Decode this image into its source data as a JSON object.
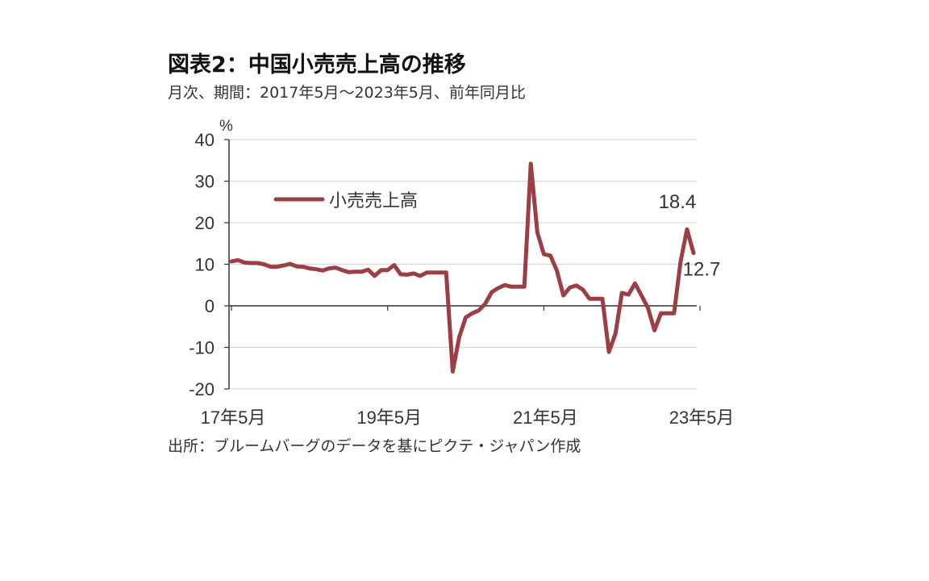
{
  "header": {
    "title": "図表2：中国小売売上高の推移",
    "subtitle": "月次、期間：2017年5月～2023年5月、前年同月比"
  },
  "footer": {
    "source": "出所：ブルームバーグのデータを基にピクテ・ジャパン作成"
  },
  "colors": {
    "series": "#9b3f44",
    "grid": "#d9d9d9",
    "axis": "#333333"
  },
  "chart_data": {
    "type": "line",
    "unit_label": "%",
    "ylim": [
      -20,
      40
    ],
    "y_ticks": [
      40,
      30,
      20,
      10,
      0,
      -10,
      -20
    ],
    "grid": true,
    "legend_position": "upper-left",
    "x_tick_labels": [
      {
        "label": "17年5月",
        "index": 0
      },
      {
        "label": "19年5月",
        "index": 24
      },
      {
        "label": "21年5月",
        "index": 48
      },
      {
        "label": "23年5月",
        "index": 72
      }
    ],
    "series": [
      {
        "name": "小売売上高",
        "start": "2017-05",
        "values": [
          10.7,
          11.0,
          10.4,
          10.3,
          10.3,
          10.0,
          9.4,
          9.4,
          9.7,
          10.1,
          9.5,
          9.4,
          9.0,
          8.8,
          8.5,
          9.0,
          9.2,
          8.6,
          8.1,
          8.2,
          8.2,
          8.7,
          7.2,
          8.6,
          8.6,
          9.8,
          7.6,
          7.5,
          7.8,
          7.2,
          8.0,
          8.0,
          8.0,
          8.0,
          -15.8,
          -7.5,
          -2.8,
          -1.8,
          -1.1,
          0.5,
          3.3,
          4.3,
          5.0,
          4.6,
          4.6,
          4.6,
          34.2,
          17.7,
          12.4,
          12.1,
          8.5,
          2.5,
          4.4,
          4.9,
          3.9,
          1.7,
          1.7,
          1.7,
          -11.1,
          -6.7,
          3.1,
          2.7,
          5.4,
          2.5,
          -0.5,
          -5.9,
          -1.8,
          -1.8,
          -1.8,
          10.6,
          18.4,
          12.7
        ]
      }
    ],
    "annotations": [
      {
        "text": "18.4",
        "index": 70
      },
      {
        "text": "12.7",
        "index": 71
      }
    ]
  }
}
